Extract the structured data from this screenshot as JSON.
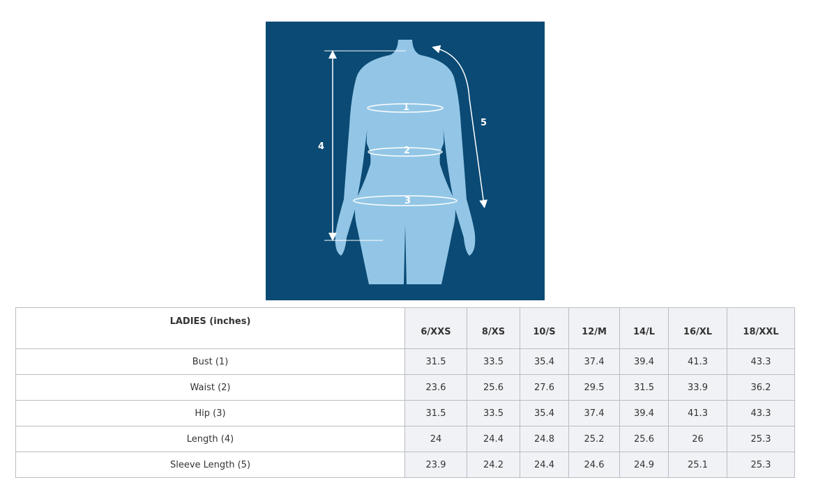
{
  "figure": {
    "background_color": "#0a4a74",
    "body_color": "#93c6e6",
    "labels": [
      "1",
      "2",
      "3",
      "4",
      "5"
    ]
  },
  "table": {
    "title": "LADIES (inches)",
    "sizes": [
      "6/XXS",
      "8/XS",
      "10/S",
      "12/M",
      "14/L",
      "16/XL",
      "18/XXL"
    ],
    "rows": [
      {
        "label": "Bust (1)",
        "values": [
          "31.5",
          "33.5",
          "35.4",
          "37.4",
          "39.4",
          "41.3",
          "43.3"
        ]
      },
      {
        "label": "Waist (2)",
        "values": [
          "23.6",
          "25.6",
          "27.6",
          "29.5",
          "31.5",
          "33.9",
          "36.2"
        ]
      },
      {
        "label": "Hip (3)",
        "values": [
          "31.5",
          "33.5",
          "35.4",
          "37.4",
          "39.4",
          "41.3",
          "43.3"
        ]
      },
      {
        "label": "Length (4)",
        "values": [
          "24",
          "24.4",
          "24.8",
          "25.2",
          "25.6",
          "26",
          "25.3"
        ]
      },
      {
        "label": "Sleeve Length (5)",
        "values": [
          "23.9",
          "24.2",
          "24.4",
          "24.6",
          "24.9",
          "25.1",
          "25.3"
        ]
      }
    ]
  }
}
